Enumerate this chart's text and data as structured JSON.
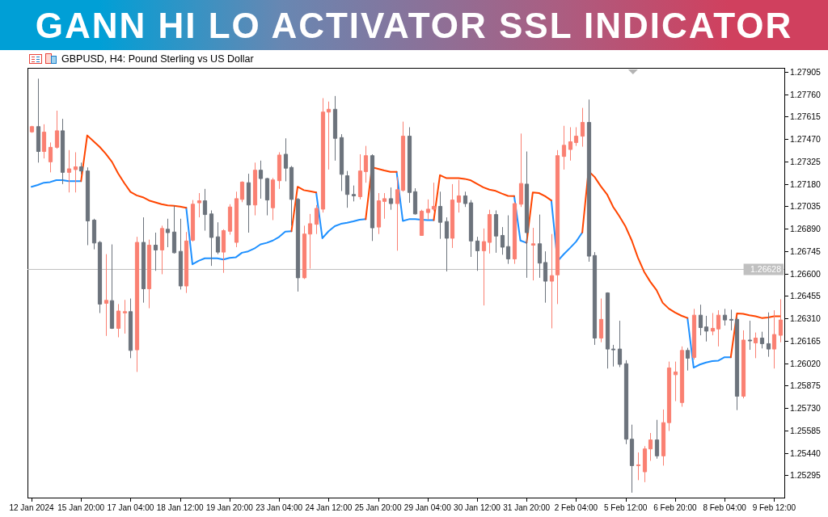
{
  "chart_data": {
    "type": "candlestick",
    "title": "GANN HI LO ACTIVATOR SSL INDICATOR",
    "subtitle": "GBPUSD, H4: Pound Sterling vs US Dollar",
    "categories": [
      "12 Jan 2024",
      null,
      null,
      null,
      null,
      null,
      null,
      null,
      "15 Jan 20:00",
      null,
      null,
      null,
      null,
      null,
      null,
      null,
      "17 Jan 04:00",
      null,
      null,
      null,
      null,
      null,
      null,
      null,
      "18 Jan 12:00",
      null,
      null,
      null,
      null,
      null,
      null,
      null,
      "19 Jan 20:00",
      null,
      null,
      null,
      null,
      null,
      null,
      null,
      "23 Jan 04:00",
      null,
      null,
      null,
      null,
      null,
      null,
      null,
      "24 Jan 12:00",
      null,
      null,
      null,
      null,
      null,
      null,
      null,
      "25 Jan 20:00",
      null,
      null,
      null,
      null,
      null,
      null,
      null,
      "29 Jan 04:00",
      null,
      null,
      null,
      null,
      null,
      null,
      null,
      "30 Jan 12:00",
      null,
      null,
      null,
      null,
      null,
      null,
      null,
      "31 Jan 20:00",
      null,
      null,
      null,
      null,
      null,
      null,
      null,
      "2 Feb 04:00",
      null,
      null,
      null,
      null,
      null,
      null,
      null,
      "5 Feb 12:00",
      null,
      null,
      null,
      null,
      null,
      null,
      null,
      "6 Feb 20:00",
      null,
      null,
      null,
      null,
      null,
      null,
      null,
      "8 Feb 04:00",
      null,
      null,
      null,
      null,
      null,
      null,
      null,
      "9 Feb 12:00",
      null
    ],
    "ohlc": [
      [
        1.27516,
        1.27555,
        1.2751,
        1.2755
      ],
      [
        1.2755,
        1.2786,
        1.27317,
        1.27389
      ],
      [
        1.27389,
        1.27565,
        1.27344,
        1.27514
      ],
      [
        1.27322,
        1.27447,
        1.27254,
        1.27416
      ],
      [
        1.27416,
        1.27653,
        1.27407,
        1.27523
      ],
      [
        1.27523,
        1.276,
        1.27178,
        1.27254
      ],
      [
        1.27254,
        1.27398,
        1.27124,
        1.27277
      ],
      [
        1.27272,
        1.27384,
        1.27124,
        1.2729
      ],
      [
        1.2729,
        1.27317,
        1.27241,
        1.27263
      ],
      [
        1.27263,
        1.27286,
        1.26783,
        1.2694
      ],
      [
        1.26945,
        1.26954,
        1.26756,
        1.26797
      ],
      [
        1.26801,
        1.2681,
        1.26344,
        1.26402
      ],
      [
        1.26407,
        1.26725,
        1.26196,
        1.26426
      ],
      [
        1.26424,
        1.26788,
        1.26241,
        1.26245
      ],
      [
        1.26245,
        1.26402,
        1.26187,
        1.26357
      ],
      [
        1.26345,
        1.26429,
        1.26211,
        1.26353
      ],
      [
        1.26353,
        1.26438,
        1.26052,
        1.26102
      ],
      [
        1.26106,
        1.26837,
        1.25963,
        1.26801
      ],
      [
        1.26801,
        1.26963,
        1.26411,
        1.26501
      ],
      [
        1.26501,
        1.26819,
        1.26375,
        1.26783
      ],
      [
        1.26783,
        1.26864,
        1.26617,
        1.26752
      ],
      [
        1.26752,
        1.26909,
        1.26595,
        1.26891
      ],
      [
        1.26886,
        1.26954,
        1.2677,
        1.26864
      ],
      [
        1.26868,
        1.27039,
        1.26729,
        1.26734
      ],
      [
        1.26743,
        1.26954,
        1.26496,
        1.26519
      ],
      [
        1.26519,
        1.26868,
        1.26474,
        1.2681
      ],
      [
        1.26815,
        1.27075,
        1.26806,
        1.27048
      ],
      [
        1.27057,
        1.2712,
        1.26963,
        1.2707
      ],
      [
        1.2707,
        1.27147,
        1.26877,
        1.26981
      ],
      [
        1.26985,
        1.27008,
        1.26649,
        1.26833
      ],
      [
        1.26837,
        1.26931,
        1.26725,
        1.26738
      ],
      [
        1.26738,
        1.26886,
        1.26604,
        1.26877
      ],
      [
        1.26873,
        1.27048,
        1.26851,
        1.2703
      ],
      [
        1.26801,
        1.27129,
        1.2677,
        1.27084
      ],
      [
        1.27079,
        1.27196,
        1.27061,
        1.27191
      ],
      [
        1.27187,
        1.27245,
        1.26864,
        1.27043
      ],
      [
        1.27043,
        1.27317,
        1.26976,
        1.27268
      ],
      [
        1.27268,
        1.2733,
        1.27084,
        1.27214
      ],
      [
        1.27214,
        1.27218,
        1.26976,
        1.27075
      ],
      [
        1.27025,
        1.27218,
        1.26945,
        1.27205
      ],
      [
        1.272,
        1.27384,
        1.27147,
        1.27366
      ],
      [
        1.27371,
        1.27474,
        1.27196,
        1.27281
      ],
      [
        1.27286,
        1.27295,
        1.26909,
        1.27079
      ],
      [
        1.27079,
        1.27088,
        1.26483,
        1.26572
      ],
      [
        1.26572,
        1.26909,
        1.26564,
        1.26855
      ],
      [
        1.26855,
        1.26985,
        1.26631,
        1.26922
      ],
      [
        1.26918,
        1.27043,
        1.26855,
        1.27021
      ],
      [
        1.27016,
        1.27734,
        1.26994,
        1.27644
      ],
      [
        1.27644,
        1.27712,
        1.27272,
        1.27662
      ],
      [
        1.27662,
        1.27748,
        1.2733,
        1.27474
      ],
      [
        1.27479,
        1.27501,
        1.27133,
        1.27241
      ],
      [
        1.27232,
        1.27263,
        1.27025,
        1.27111
      ],
      [
        1.27111,
        1.27169,
        1.27066,
        1.27102
      ],
      [
        1.27097,
        1.27371,
        1.27079,
        1.27263
      ],
      [
        1.27259,
        1.27425,
        1.27187,
        1.27362
      ],
      [
        1.27362,
        1.27371,
        1.2681,
        1.26895
      ],
      [
        1.269,
        1.2712,
        1.26855,
        1.2707
      ],
      [
        1.27066,
        1.2712,
        1.26954,
        1.27084
      ],
      [
        1.27084,
        1.27156,
        1.27012,
        1.27052
      ],
      [
        1.27052,
        1.27223,
        1.26747,
        1.27142
      ],
      [
        1.27138,
        1.27582,
        1.27129,
        1.27488
      ],
      [
        1.27488,
        1.27546,
        1.27057,
        1.27124
      ],
      [
        1.27129,
        1.27151,
        1.26981,
        1.26985
      ],
      [
        1.26846,
        1.27012,
        1.26844,
        1.27003
      ],
      [
        1.26994,
        1.27079,
        1.26949,
        1.27016
      ],
      [
        1.27016,
        1.27187,
        1.27003,
        1.27034
      ],
      [
        1.27034,
        1.27129,
        1.26824,
        1.26931
      ],
      [
        1.26936,
        1.26963,
        1.26613,
        1.26828
      ],
      [
        1.26828,
        1.27178,
        1.26765,
        1.27075
      ],
      [
        1.27061,
        1.27205,
        1.26994,
        1.27102
      ],
      [
        1.27102,
        1.27129,
        1.2703,
        1.27052
      ],
      [
        1.27057,
        1.27075,
        1.26707,
        1.2681
      ],
      [
        1.2681,
        1.26837,
        1.26617,
        1.26747
      ],
      [
        1.26747,
        1.26891,
        1.26393,
        1.26806
      ],
      [
        1.26801,
        1.27012,
        1.26729,
        1.26981
      ],
      [
        1.26981,
        1.27008,
        1.26734,
        1.26842
      ],
      [
        1.26846,
        1.269,
        1.26721,
        1.2677
      ],
      [
        1.26774,
        1.26976,
        1.26662,
        1.26694
      ],
      [
        1.26694,
        1.27061,
        1.26662,
        1.27052
      ],
      [
        1.27048,
        1.27505,
        1.2703,
        1.27182
      ],
      [
        1.27178,
        1.27389,
        1.26572,
        1.26864
      ],
      [
        1.26783,
        1.26895,
        1.26555,
        1.26792
      ],
      [
        1.26792,
        1.26981,
        1.26572,
        1.26667
      ],
      [
        1.26671,
        1.26743,
        1.26411,
        1.2655
      ],
      [
        1.2655,
        1.26855,
        1.26245,
        1.26586
      ],
      [
        1.26591,
        1.27398,
        1.26402,
        1.27362
      ],
      [
        1.27357,
        1.27555,
        1.27272,
        1.27429
      ],
      [
        1.27402,
        1.27546,
        1.2733,
        1.27452
      ],
      [
        1.27447,
        1.27546,
        1.27425,
        1.27488
      ],
      [
        1.27488,
        1.27671,
        1.2742,
        1.27577
      ],
      [
        1.27577,
        1.27725,
        1.26676,
        1.26712
      ],
      [
        1.26716,
        1.26738,
        1.26138,
        1.26182
      ],
      [
        1.26182,
        1.26438,
        1.26155,
        1.26303
      ],
      [
        1.26474,
        1.26478,
        1.25985,
        1.26111
      ],
      [
        1.26111,
        1.26138,
        1.25998,
        1.26106
      ],
      [
        1.26111,
        1.26294,
        1.25994,
        1.26012
      ],
      [
        1.26016,
        1.26039,
        1.25496,
        1.25528
      ],
      [
        1.25528,
        1.25622,
        1.25182,
        1.25357
      ],
      [
        1.25357,
        1.25442,
        1.25263,
        1.25362
      ],
      [
        1.25317,
        1.25483,
        1.2525,
        1.25465
      ],
      [
        1.25465,
        1.25568,
        1.25388,
        1.25523
      ],
      [
        1.25523,
        1.25653,
        1.25402,
        1.2542
      ],
      [
        1.2542,
        1.2572,
        1.25357,
        1.25635
      ],
      [
        1.25635,
        1.2603,
        1.25581,
        1.25989
      ],
      [
        1.25945,
        1.2603,
        1.25774,
        1.25963
      ],
      [
        1.25765,
        1.26128,
        1.25738,
        1.26102
      ],
      [
        1.26102,
        1.26119,
        1.25972,
        1.26052
      ],
      [
        1.26057,
        1.26371,
        1.26043,
        1.2633
      ],
      [
        1.2633,
        1.26398,
        1.262,
        1.2625
      ],
      [
        1.26254,
        1.26326,
        1.2616,
        1.26227
      ],
      [
        1.26227,
        1.26344,
        1.262,
        1.26245
      ],
      [
        1.26241,
        1.26362,
        1.26128,
        1.2633
      ],
      [
        1.2633,
        1.26371,
        1.26263,
        1.26299
      ],
      [
        1.26303,
        1.26366,
        1.26232,
        1.26301
      ],
      [
        1.26303,
        1.26317,
        1.25716,
        1.25806
      ],
      [
        1.25806,
        1.26232,
        1.25792,
        1.26169
      ],
      [
        1.26169,
        1.26294,
        1.26106,
        1.26167
      ],
      [
        1.26151,
        1.26218,
        1.26052,
        1.26182
      ],
      [
        1.26182,
        1.26223,
        1.26115,
        1.26146
      ],
      [
        1.26146,
        1.26348,
        1.26061,
        1.26111
      ],
      [
        1.26111,
        1.26362,
        1.25985,
        1.26205
      ],
      [
        1.262,
        1.26433,
        1.26155,
        1.26299
      ]
    ],
    "colors": [
      "#fa8072",
      "#6c737c",
      "#fa8072",
      "#fa8072",
      "#fa8072",
      "#6c737c",
      "#fa8072",
      "#fa8072",
      "#6c737c",
      "#6c737c",
      "#6c737c",
      "#6c737c",
      "#fa8072",
      "#6c737c",
      "#fa8072",
      "#fa8072",
      "#6c737c",
      "#fa8072",
      "#6c737c",
      "#fa8072",
      "#6c737c",
      "#fa8072",
      "#6c737c",
      "#6c737c",
      "#6c737c",
      "#fa8072",
      "#fa8072",
      "#fa8072",
      "#6c737c",
      "#6c737c",
      "#6c737c",
      "#fa8072",
      "#fa8072",
      "#fa8072",
      "#fa8072",
      "#6c737c",
      "#fa8072",
      "#6c737c",
      "#6c737c",
      "#fa8072",
      "#fa8072",
      "#6c737c",
      "#6c737c",
      "#6c737c",
      "#fa8072",
      "#fa8072",
      "#fa8072",
      "#fa8072",
      "#fa8072",
      "#6c737c",
      "#6c737c",
      "#6c737c",
      "#6c737c",
      "#fa8072",
      "#fa8072",
      "#6c737c",
      "#fa8072",
      "#fa8072",
      "#6c737c",
      "#fa8072",
      "#fa8072",
      "#6c737c",
      "#6c737c",
      "#fa8072",
      "#fa8072",
      "#fa8072",
      "#6c737c",
      "#6c737c",
      "#fa8072",
      "#fa8072",
      "#6c737c",
      "#6c737c",
      "#6c737c",
      "#fa8072",
      "#fa8072",
      "#6c737c",
      "#6c737c",
      "#6c737c",
      "#fa8072",
      "#fa8072",
      "#6c737c",
      "#fa8072",
      "#6c737c",
      "#6c737c",
      "#fa8072",
      "#fa8072",
      "#fa8072",
      "#fa8072",
      "#fa8072",
      "#fa8072",
      "#6c737c",
      "#6c737c",
      "#fa8072",
      "#6c737c",
      "#6c737c",
      "#6c737c",
      "#6c737c",
      "#6c737c",
      "#fa8072",
      "#fa8072",
      "#fa8072",
      "#6c737c",
      "#fa8072",
      "#fa8072",
      "#fa8072",
      "#fa8072",
      "#6c737c",
      "#fa8072",
      "#6c737c",
      "#6c737c",
      "#fa8072",
      "#fa8072",
      "#6c737c",
      "#6c737c",
      "#6c737c",
      "#fa8072",
      "#6c737c",
      "#fa8072",
      "#6c737c",
      "#6c737c",
      "#fa8072",
      "#fa8072"
    ],
    "series": [
      {
        "type": "line",
        "color": "#1e90ff",
        "values": [
          1.27161,
          1.27172,
          1.27187,
          1.27191,
          1.27204,
          1.27204,
          1.27197,
          1.27197,
          1.27197,
          null,
          null,
          null,
          null,
          null,
          null,
          null,
          null,
          null,
          null,
          null,
          null,
          null,
          null,
          null,
          null,
          1.27025,
          1.26659,
          1.26682,
          1.26698,
          1.26698,
          1.26698,
          1.2669,
          1.26701,
          1.26704,
          1.26734,
          1.26743,
          1.26761,
          1.26788,
          1.26798,
          1.26813,
          1.26836,
          1.2687,
          1.26873,
          null,
          null,
          null,
          1.27124,
          1.26828,
          1.26873,
          1.26906,
          1.26921,
          1.26928,
          1.26937,
          1.26948,
          1.26951,
          null,
          null,
          null,
          null,
          1.27257,
          1.2694,
          1.26951,
          1.26951,
          1.26948,
          1.26945,
          1.26945,
          null,
          null,
          null,
          null,
          null,
          null,
          null,
          null,
          null,
          null,
          null,
          null,
          1.271,
          1.26813,
          1.26798,
          null,
          null,
          null,
          1.27072,
          1.26679,
          1.26724,
          1.26764,
          1.26806,
          1.26865,
          null,
          null,
          null,
          null,
          null,
          null,
          null,
          null,
          null,
          null,
          null,
          null,
          null,
          null,
          null,
          null,
          1.26312,
          1.25991,
          1.26011,
          1.26024,
          1.26033,
          1.26036,
          1.26058,
          1.26058,
          null,
          null,
          null,
          null,
          null,
          null,
          null,
          null
        ]
      },
      {
        "type": "line",
        "color": "#ff4500",
        "values": [
          null,
          null,
          null,
          null,
          null,
          null,
          null,
          null,
          1.27197,
          1.27493,
          1.27456,
          1.27419,
          1.27374,
          1.27322,
          1.27247,
          1.27184,
          1.27127,
          1.27105,
          1.27093,
          1.27072,
          1.2706,
          1.27048,
          1.2704,
          1.27038,
          1.27033,
          1.27025,
          null,
          null,
          null,
          null,
          null,
          null,
          null,
          null,
          null,
          null,
          null,
          null,
          null,
          null,
          null,
          null,
          1.26873,
          1.27161,
          1.27139,
          1.27132,
          1.27124,
          null,
          null,
          null,
          null,
          null,
          null,
          null,
          1.26951,
          1.27287,
          1.27277,
          1.27266,
          1.27257,
          1.27257,
          null,
          null,
          null,
          null,
          null,
          1.26945,
          1.27236,
          1.27217,
          1.27217,
          1.27217,
          1.27212,
          1.27202,
          1.27179,
          1.27157,
          1.27142,
          1.27134,
          1.27117,
          1.27102,
          1.271,
          null,
          1.26798,
          1.27124,
          1.2712,
          1.271,
          1.27072,
          null,
          null,
          null,
          null,
          1.26865,
          1.27262,
          1.27224,
          1.27164,
          1.27112,
          1.2703,
          1.2697,
          1.26903,
          1.26813,
          1.26701,
          1.26611,
          1.26546,
          1.26492,
          1.2641,
          1.26372,
          1.26347,
          1.26327,
          1.26312,
          null,
          null,
          null,
          null,
          null,
          null,
          1.26058,
          1.26342,
          1.26339,
          1.2633,
          1.26323,
          1.26312,
          1.26315,
          1.26323,
          1.26323
        ]
      }
    ],
    "ylim": [
      1.2515,
      1.2793
    ],
    "yticks": [
      1.27905,
      {
        "value": 1.2776,
        "label": "1.27760"
      },
      1.27615,
      {
        "value": 1.2747,
        "label": "1.27470"
      },
      1.27325,
      {
        "value": 1.2718,
        "label": "1.27180"
      },
      1.27035,
      {
        "value": 1.2689,
        "label": "1.26890"
      },
      1.26745,
      {
        "value": 1.266,
        "label": "1.26600"
      },
      1.26455,
      {
        "value": 1.2631,
        "label": "1.26310"
      },
      1.26165,
      {
        "value": 1.2602,
        "label": "1.26020"
      },
      1.25875,
      {
        "value": 1.2573,
        "label": "1.25730"
      },
      1.25585,
      {
        "value": 1.2544,
        "label": "1.25440"
      },
      1.25295
    ],
    "ref_lines": [
      {
        "axis": "y",
        "value": 1.26628,
        "label": "1.26628",
        "color": "#c0c0c0"
      }
    ]
  }
}
